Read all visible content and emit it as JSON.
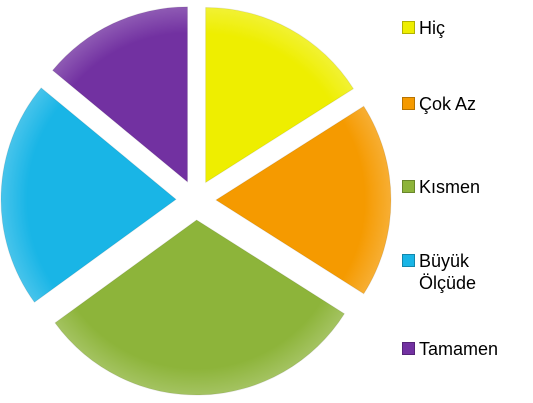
{
  "chart_data": {
    "type": "pie",
    "categories": [
      "Hiç",
      "Çok Az",
      "Kısmen",
      "Büyük Ölçüde",
      "Tamamen"
    ],
    "values": [
      16,
      18,
      31,
      21,
      14
    ],
    "colors": [
      "#eeee00",
      "#f59a00",
      "#8db43a",
      "#19b5e6",
      "#7231a1"
    ],
    "exploded": true,
    "legend": "right"
  }
}
